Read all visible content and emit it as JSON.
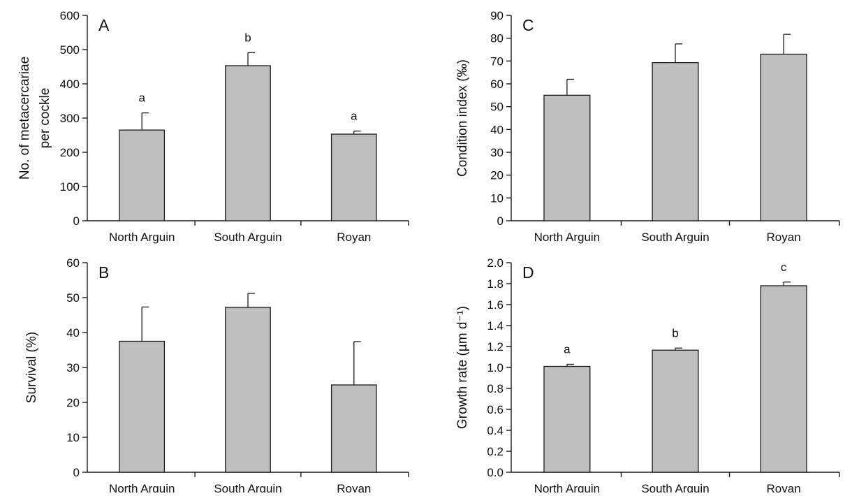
{
  "colors": {
    "bar_fill": "#bfbfbf",
    "bar_stroke": "#1a1a1a",
    "axis": "#1a1a1a"
  },
  "chart_data": [
    {
      "panel": "A",
      "type": "bar",
      "categories": [
        "North Arguin",
        "South Arguin",
        "Royan"
      ],
      "values": [
        265,
        453,
        253
      ],
      "error_bars": [
        50,
        38,
        9
      ],
      "significance_letters": [
        "a",
        "b",
        "a"
      ],
      "ylabel_lines": [
        "No. of metacercariae",
        "per cockle"
      ],
      "ylim": [
        0,
        600
      ],
      "yticks": [
        0,
        100,
        200,
        300,
        400,
        500,
        600
      ],
      "ytick_labels": [
        "0",
        "100",
        "200",
        "300",
        "400",
        "500",
        "600"
      ],
      "grid": false
    },
    {
      "panel": "B",
      "type": "bar",
      "categories": [
        "North Arguin",
        "South Arguin",
        "Royan"
      ],
      "values": [
        37.5,
        47.2,
        25.0
      ],
      "error_bars": [
        9.8,
        4.0,
        12.4
      ],
      "significance_letters": [
        "",
        "",
        ""
      ],
      "ylabel_lines": [
        "Survival (%)"
      ],
      "ylim": [
        0,
        60
      ],
      "yticks": [
        0,
        10,
        20,
        30,
        40,
        50,
        60
      ],
      "ytick_labels": [
        "0",
        "10",
        "20",
        "30",
        "40",
        "50",
        "60"
      ],
      "grid": false
    },
    {
      "panel": "C",
      "type": "bar",
      "categories": [
        "North Arguin",
        "South Arguin",
        "Royan"
      ],
      "values": [
        55.0,
        69.3,
        73.0
      ],
      "error_bars": [
        7.0,
        8.2,
        8.7
      ],
      "significance_letters": [
        "",
        "",
        ""
      ],
      "ylabel_lines": [
        "Condition index (‰)"
      ],
      "ylim": [
        0,
        90
      ],
      "yticks": [
        0,
        10,
        20,
        30,
        40,
        50,
        60,
        70,
        80,
        90
      ],
      "ytick_labels": [
        "0",
        "10",
        "20",
        "30",
        "40",
        "50",
        "60",
        "70",
        "80",
        "90"
      ],
      "grid": false
    },
    {
      "panel": "D",
      "type": "bar",
      "categories": [
        "North Arguin",
        "South Arguin",
        "Royan"
      ],
      "values": [
        1.01,
        1.165,
        1.78
      ],
      "error_bars": [
        0.02,
        0.02,
        0.035
      ],
      "significance_letters": [
        "a",
        "b",
        "c"
      ],
      "ylabel_lines": [
        "Growth rate (µm d⁻¹)"
      ],
      "ylim": [
        0,
        2.0
      ],
      "yticks": [
        0,
        0.2,
        0.4,
        0.6,
        0.8,
        1.0,
        1.2,
        1.4,
        1.6,
        1.8,
        2.0
      ],
      "ytick_labels": [
        "0.0",
        "0.2",
        "0.4",
        "0.6",
        "0.8",
        "1.0",
        "1.2",
        "1.4",
        "1.6",
        "1.8",
        "2.0"
      ],
      "grid": false
    }
  ]
}
